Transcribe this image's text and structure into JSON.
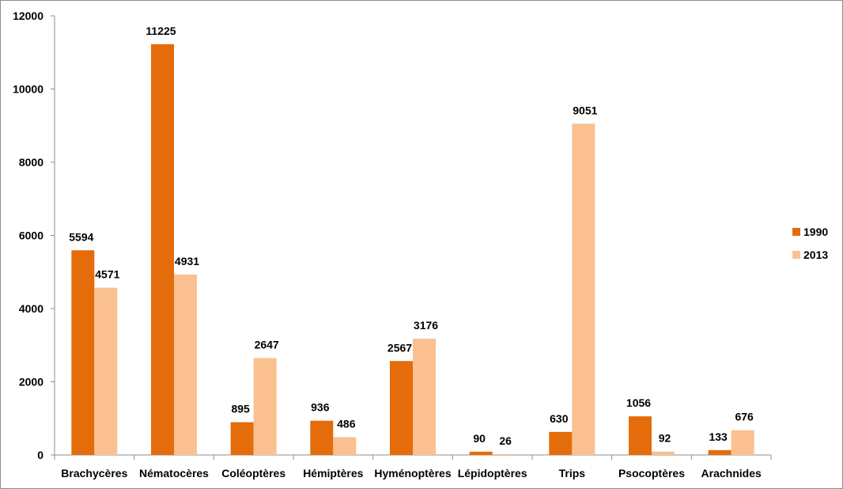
{
  "chart_data": {
    "type": "bar",
    "title": "",
    "xlabel": "",
    "ylabel": "",
    "categories": [
      "Brachycères",
      "Nématocères",
      "Coléoptères",
      "Hémiptères",
      "Hyménoptères",
      "Lépidoptères",
      "Trips",
      "Psocoptères",
      "Arachnides"
    ],
    "series": [
      {
        "name": "1990",
        "color": "#e46c0a",
        "values": [
          5594,
          11225,
          895,
          936,
          2567,
          90,
          630,
          1056,
          133
        ]
      },
      {
        "name": "2013",
        "color": "#fac090",
        "values": [
          4571,
          4931,
          2647,
          486,
          3176,
          26,
          9051,
          92,
          676
        ]
      }
    ],
    "ylim": [
      0,
      12000
    ],
    "yticks": [
      0,
      2000,
      4000,
      6000,
      8000,
      10000,
      12000
    ],
    "grid": false,
    "legend_position": "right"
  }
}
